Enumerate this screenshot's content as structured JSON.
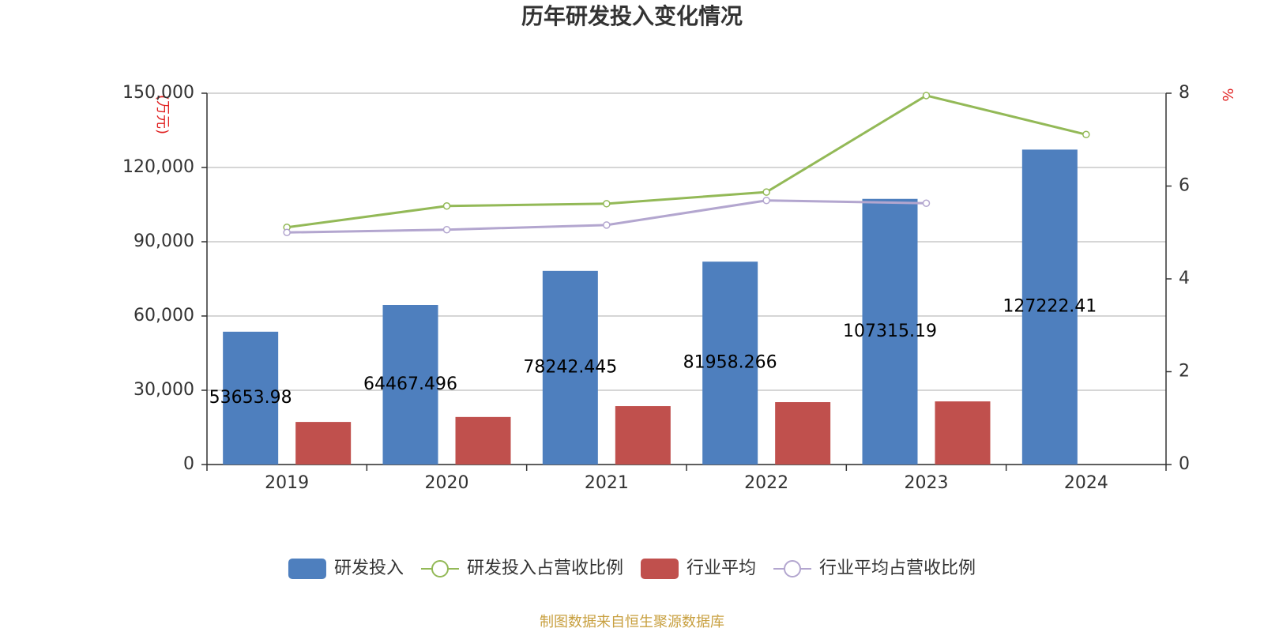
{
  "chart_data": {
    "type": "bar",
    "title": "历年研发投入变化情况",
    "y_label": "(万元)",
    "y2_label": "%",
    "source": "制图数据来自恒生聚源数据库",
    "categories": [
      "2019",
      "2020",
      "2021",
      "2022",
      "2023",
      "2024"
    ],
    "series": [
      {
        "name": "研发投入",
        "type": "bar",
        "color": "#4e7fbe",
        "values": [
          53653.98,
          64467.496,
          78242.445,
          81958.266,
          107315.19,
          127222.41
        ]
      },
      {
        "name": "研发投入占营收比例",
        "type": "line",
        "axis": "y2",
        "color": "#93b957",
        "values": [
          5.11,
          5.57,
          5.62,
          5.87,
          7.95,
          7.11
        ]
      },
      {
        "name": "行业平均",
        "type": "bar",
        "color": "#c0504d",
        "values": [
          17200,
          19200,
          23600,
          25200,
          25500,
          null
        ]
      },
      {
        "name": "行业平均占营收比例",
        "type": "line",
        "axis": "y2",
        "color": "#b3a6cf",
        "values": [
          5.0,
          5.06,
          5.16,
          5.69,
          5.63,
          null
        ]
      }
    ],
    "ylim": [
      0,
      150000
    ],
    "yticks": [
      0,
      {
        "value": 30000,
        "label": "30,000"
      },
      {
        "value": 60000,
        "label": "60,000"
      },
      {
        "value": 90000,
        "label": "90,000"
      },
      {
        "value": 120000,
        "label": "120,000"
      },
      {
        "value": 150000,
        "label": "150,000"
      }
    ],
    "y2lim": [
      0,
      8
    ],
    "y2ticks": [
      0,
      2,
      4,
      6,
      8
    ],
    "grid": true
  }
}
